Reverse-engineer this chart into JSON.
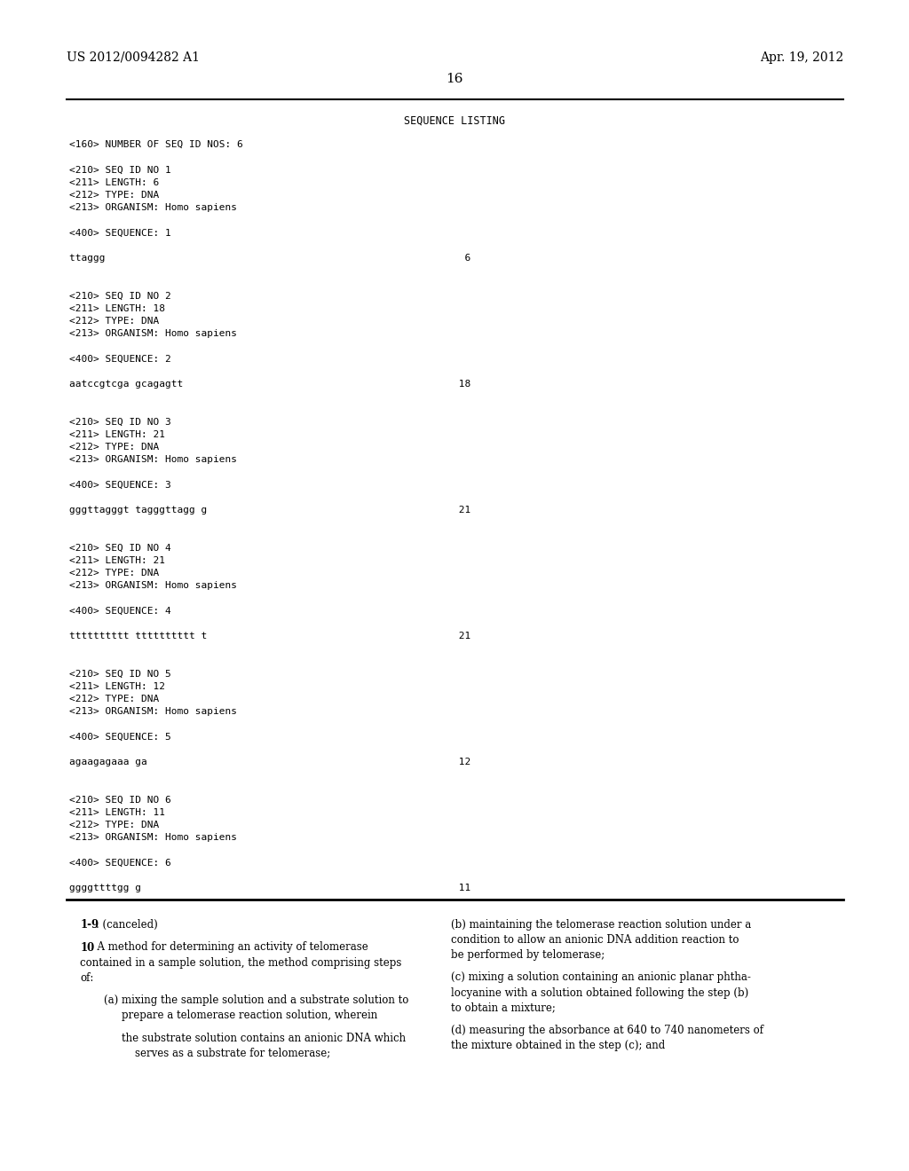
{
  "background_color": "#ffffff",
  "header_left": "US 2012/0094282 A1",
  "header_right": "Apr. 19, 2012",
  "page_number": "16",
  "seq_listing_title": "SEQUENCE LISTING",
  "seq_lines": [
    "<160> NUMBER OF SEQ ID NOS: 6",
    "",
    "<210> SEQ ID NO 1",
    "<211> LENGTH: 6",
    "<212> TYPE: DNA",
    "<213> ORGANISM: Homo sapiens",
    "",
    "<400> SEQUENCE: 1",
    "",
    "ttaggg                                                            6",
    "",
    "",
    "<210> SEQ ID NO 2",
    "<211> LENGTH: 18",
    "<212> TYPE: DNA",
    "<213> ORGANISM: Homo sapiens",
    "",
    "<400> SEQUENCE: 2",
    "",
    "aatccgtcga gcagagtt                                              18",
    "",
    "",
    "<210> SEQ ID NO 3",
    "<211> LENGTH: 21",
    "<212> TYPE: DNA",
    "<213> ORGANISM: Homo sapiens",
    "",
    "<400> SEQUENCE: 3",
    "",
    "gggttagggt tagggttagg g                                          21",
    "",
    "",
    "<210> SEQ ID NO 4",
    "<211> LENGTH: 21",
    "<212> TYPE: DNA",
    "<213> ORGANISM: Homo sapiens",
    "",
    "<400> SEQUENCE: 4",
    "",
    "tttttttttt tttttttttt t                                          21",
    "",
    "",
    "<210> SEQ ID NO 5",
    "<211> LENGTH: 12",
    "<212> TYPE: DNA",
    "<213> ORGANISM: Homo sapiens",
    "",
    "<400> SEQUENCE: 5",
    "",
    "agaagagaaa ga                                                    12",
    "",
    "",
    "<210> SEQ ID NO 6",
    "<211> LENGTH: 11",
    "<212> TYPE: DNA",
    "<213> ORGANISM: Homo sapiens",
    "",
    "<400> SEQUENCE: 6",
    "",
    "ggggttttgg g                                                     11"
  ],
  "left_col_lines": [
    {
      "bold": "1-9",
      "normal": ". (canceled)",
      "indent": 0.012
    },
    {
      "bold": "",
      "normal": "",
      "indent": 0
    },
    {
      "bold": "10",
      "normal": ". A method for determining an activity of telomerase",
      "indent": 0.012
    },
    {
      "bold": "",
      "normal": "contained in a sample solution, the method comprising steps",
      "indent": 0.012
    },
    {
      "bold": "",
      "normal": "of:",
      "indent": 0.012
    },
    {
      "bold": "",
      "normal": "",
      "indent": 0
    },
    {
      "bold": "",
      "normal": "(a) mixing the sample solution and a substrate solution to",
      "indent": 0.038
    },
    {
      "bold": "",
      "normal": "prepare a telomerase reaction solution, wherein",
      "indent": 0.058
    },
    {
      "bold": "",
      "normal": "",
      "indent": 0
    },
    {
      "bold": "",
      "normal": "the substrate solution contains an anionic DNA which",
      "indent": 0.058
    },
    {
      "bold": "",
      "normal": "serves as a substrate for telomerase;",
      "indent": 0.072
    }
  ],
  "right_col_lines": [
    {
      "normal": "(b) maintaining the telomerase reaction solution under a"
    },
    {
      "normal": "condition to allow an anionic DNA addition reaction to"
    },
    {
      "normal": "be performed by telomerase;"
    },
    {
      "normal": ""
    },
    {
      "normal": "(c) mixing a solution containing an anionic planar phtha-"
    },
    {
      "normal": "locyanine with a solution obtained following the step (b)"
    },
    {
      "normal": "to obtain a mixture;"
    },
    {
      "normal": ""
    },
    {
      "normal": "(d) measuring the absorbance at 640 to 740 nanometers of"
    },
    {
      "normal": "the mixture obtained in the step (c); and"
    }
  ]
}
